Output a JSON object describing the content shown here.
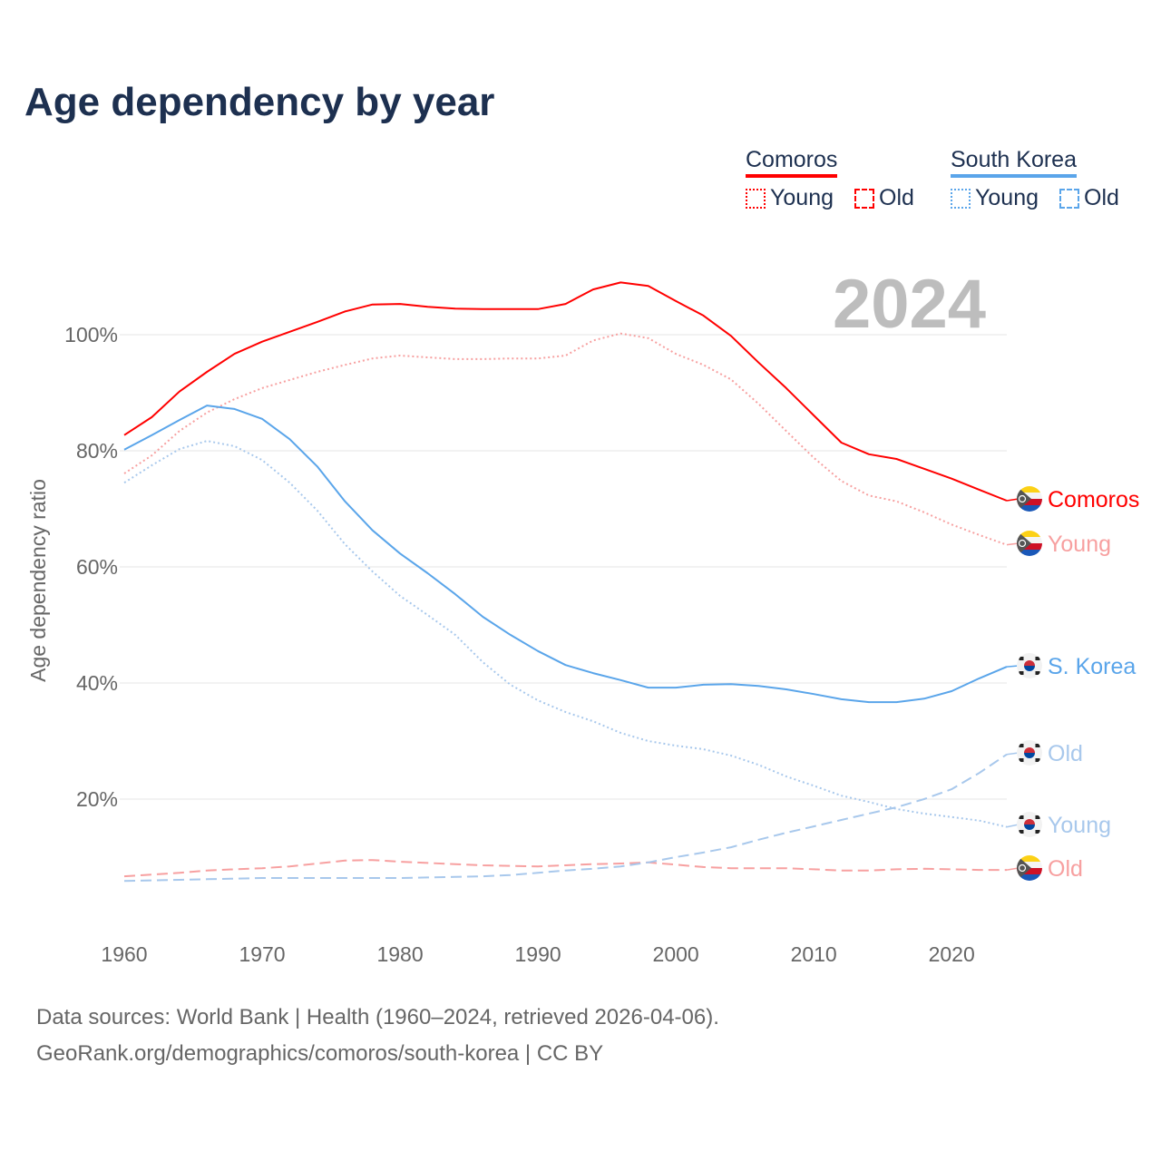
{
  "title": "Age dependency by year",
  "year_overlay": "2024",
  "legend": {
    "groups": [
      {
        "country": "Comoros",
        "color": "#ff0000",
        "items": [
          "Young",
          "Old"
        ]
      },
      {
        "country": "South Korea",
        "color": "#5aa5ea",
        "items": [
          "Young",
          "Old"
        ]
      }
    ]
  },
  "footer": {
    "line1": "Data sources: World Bank | Health (1960–2024, retrieved 2026-04-06).",
    "line2": "GeoRank.org/demographics/comoros/south-korea | CC BY"
  },
  "chart_data": {
    "type": "line",
    "title": "Age dependency by year",
    "xlabel": "",
    "ylabel": "Age dependency ratio",
    "xlim": [
      1960,
      2024
    ],
    "ylim": [
      0,
      110
    ],
    "x_ticks": [
      "1960",
      "1970",
      "1980",
      "1990",
      "2000",
      "2010",
      "2020"
    ],
    "y_ticks": [
      "20%",
      "40%",
      "60%",
      "80%",
      "100%"
    ],
    "grid": true,
    "x": [
      1960,
      1962,
      1964,
      1966,
      1968,
      1970,
      1972,
      1974,
      1976,
      1978,
      1980,
      1982,
      1984,
      1986,
      1988,
      1990,
      1992,
      1994,
      1996,
      1998,
      2000,
      2002,
      2004,
      2006,
      2008,
      2010,
      2012,
      2014,
      2016,
      2018,
      2020,
      2022,
      2024
    ],
    "series": [
      {
        "name": "Comoros",
        "end_label": "Comoros",
        "flag": "comoros",
        "color": "#ff0000",
        "style": "solid",
        "values": [
          82.7,
          85.8,
          90.2,
          93.6,
          96.7,
          98.8,
          100.5,
          102.2,
          104,
          105.2,
          105.3,
          104.8,
          104.5,
          104.4,
          104.4,
          104.4,
          105.3,
          107.8,
          109,
          108.4,
          105.8,
          103.3,
          99.8,
          95.2,
          90.8,
          86.1,
          81.4,
          79.4,
          78.6,
          76.9,
          75.2,
          73.3,
          71.4
        ]
      },
      {
        "name": "Comoros Young",
        "end_label": "Young",
        "flag": "comoros",
        "color": "#f7a0a0",
        "style": "dotted",
        "values": [
          76.1,
          79.2,
          83.4,
          86.6,
          88.9,
          90.8,
          92.2,
          93.6,
          94.8,
          95.9,
          96.4,
          96.1,
          95.8,
          95.8,
          95.9,
          95.9,
          96.4,
          99,
          100.2,
          99.4,
          96.7,
          94.8,
          92.3,
          88.1,
          83.4,
          78.8,
          74.8,
          72.3,
          71.3,
          69.4,
          67.3,
          65.5,
          63.8
        ]
      },
      {
        "name": "Comoros Old",
        "end_label": "Old",
        "flag": "comoros",
        "color": "#f7a0a0",
        "style": "dashed",
        "values": [
          6.7,
          7.0,
          7.3,
          7.7,
          7.9,
          8.1,
          8.4,
          8.9,
          9.4,
          9.5,
          9.2,
          9.0,
          8.8,
          8.6,
          8.5,
          8.4,
          8.6,
          8.8,
          8.9,
          9.1,
          8.7,
          8.3,
          8.1,
          8.1,
          8.1,
          7.9,
          7.7,
          7.7,
          7.9,
          8.0,
          7.9,
          7.8,
          7.8
        ]
      },
      {
        "name": "S. Korea",
        "end_label": "S. Korea",
        "flag": "korea",
        "color": "#5aa5ea",
        "style": "solid",
        "values": [
          80.2,
          82.7,
          85.3,
          87.8,
          87.2,
          85.5,
          82,
          77.3,
          71.3,
          66.3,
          62.3,
          58.9,
          55.3,
          51.4,
          48.3,
          45.5,
          43.1,
          41.7,
          40.5,
          39.2,
          39.2,
          39.7,
          39.8,
          39.5,
          38.9,
          38.1,
          37.2,
          36.7,
          36.7,
          37.3,
          38.6,
          40.8,
          42.8
        ]
      },
      {
        "name": "S. Korea Young",
        "end_label": "Young",
        "flag": "korea",
        "color": "#a8c8ec",
        "style": "dotted",
        "values": [
          74.5,
          77.5,
          80.3,
          81.7,
          80.8,
          78.4,
          74.5,
          69.7,
          63.9,
          59.2,
          55,
          51.7,
          48.3,
          43.6,
          39.7,
          37,
          35,
          33.4,
          31.4,
          30,
          29.2,
          28.6,
          27.5,
          25.9,
          23.9,
          22.3,
          20.6,
          19.5,
          18.3,
          17.5,
          16.9,
          16.3,
          15.2
        ]
      },
      {
        "name": "S. Korea Old",
        "end_label": "Old",
        "flag": "korea",
        "color": "#a8c8ec",
        "style": "dashed",
        "values": [
          5.9,
          6.0,
          6.1,
          6.2,
          6.3,
          6.4,
          6.4,
          6.4,
          6.4,
          6.4,
          6.4,
          6.5,
          6.6,
          6.7,
          6.9,
          7.3,
          7.7,
          8.0,
          8.4,
          9.1,
          10,
          10.8,
          11.7,
          13,
          14.2,
          15.3,
          16.4,
          17.5,
          18.6,
          20,
          21.7,
          24.5,
          27.7
        ]
      }
    ]
  }
}
